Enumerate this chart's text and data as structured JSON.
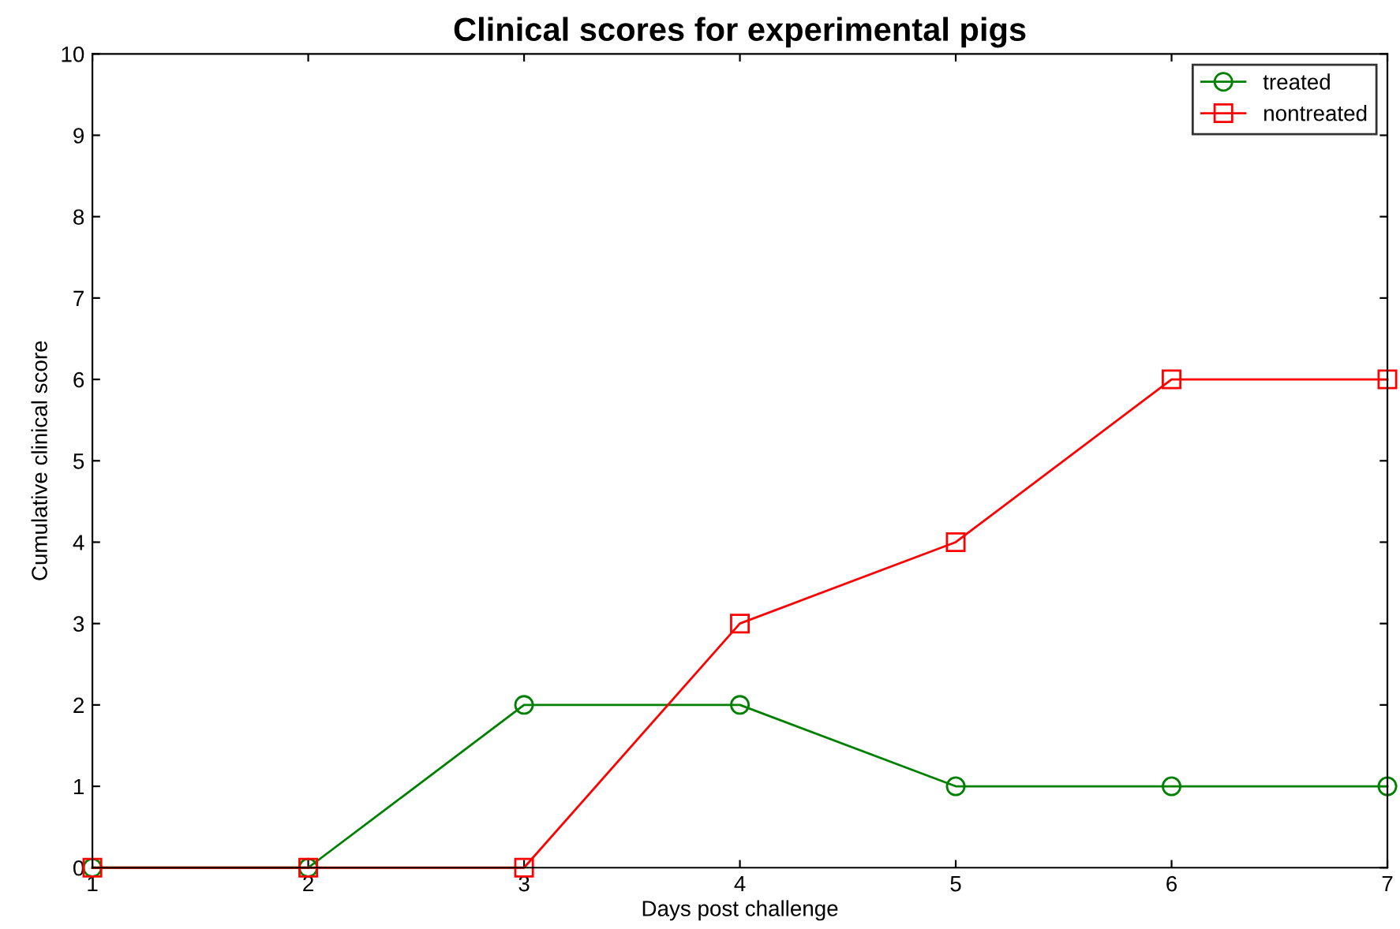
{
  "chart_data": {
    "type": "line",
    "title": "Clinical scores for experimental pigs",
    "xlabel": "Days post challenge",
    "ylabel": "Cumulative clinical score",
    "x": [
      1,
      2,
      3,
      4,
      5,
      6,
      7
    ],
    "series": [
      {
        "name": "treated",
        "color": "#008000",
        "marker": "circle",
        "values": [
          0,
          0,
          2,
          2,
          1,
          1,
          1
        ]
      },
      {
        "name": "nontreated",
        "color": "#ff0000",
        "marker": "square",
        "values": [
          0,
          0,
          0,
          3,
          4,
          6,
          6
        ]
      }
    ],
    "xlim": [
      1,
      7
    ],
    "xticks": [
      1,
      2,
      3,
      4,
      5,
      6,
      7
    ],
    "ylim": [
      0,
      10
    ],
    "yticks": [
      0,
      1,
      2,
      3,
      4,
      5,
      6,
      7,
      8,
      9,
      10
    ],
    "grid": false,
    "legend": "top right",
    "line_style": "solid"
  }
}
